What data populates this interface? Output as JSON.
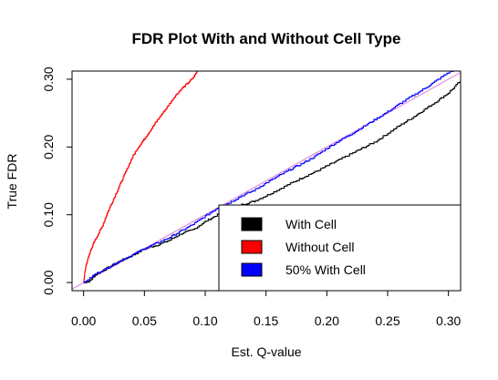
{
  "chart_data": {
    "type": "line",
    "title": "FDR Plot With and Without Cell Type",
    "xlabel": "Est. Q-value",
    "ylabel": "True FDR",
    "xlim": [
      -0.0095,
      0.31
    ],
    "ylim": [
      -0.012,
      0.312
    ],
    "xticks": [
      0.0,
      0.05,
      0.1,
      0.15,
      0.2,
      0.25,
      0.3
    ],
    "xtick_labels": [
      "0.00",
      "0.05",
      "0.10",
      "0.15",
      "0.20",
      "0.25",
      "0.30"
    ],
    "yticks": [
      0.0,
      0.1,
      0.2,
      0.3
    ],
    "ytick_labels": [
      "0.00",
      "0.10",
      "0.20",
      "0.30"
    ],
    "grid": false,
    "legend_position": "bottom-right",
    "reference_line": {
      "slope": 1,
      "intercept": 0,
      "color": "#e08ee0"
    },
    "series": [
      {
        "name": "With Cell",
        "color": "#000000",
        "x": [
          0.0,
          0.005,
          0.01,
          0.02,
          0.03,
          0.04,
          0.05,
          0.06,
          0.07,
          0.08,
          0.09,
          0.1,
          0.11,
          0.12,
          0.13,
          0.14,
          0.15,
          0.16,
          0.17,
          0.18,
          0.19,
          0.2,
          0.21,
          0.22,
          0.23,
          0.24,
          0.25,
          0.26,
          0.27,
          0.28,
          0.29,
          0.3,
          0.31
        ],
        "y": [
          0.0,
          0.002,
          0.012,
          0.022,
          0.032,
          0.04,
          0.05,
          0.055,
          0.062,
          0.072,
          0.078,
          0.09,
          0.1,
          0.105,
          0.115,
          0.12,
          0.128,
          0.137,
          0.146,
          0.155,
          0.163,
          0.172,
          0.181,
          0.19,
          0.199,
          0.208,
          0.22,
          0.232,
          0.243,
          0.255,
          0.267,
          0.28,
          0.298
        ]
      },
      {
        "name": "Without Cell",
        "color": "#ff0000",
        "x": [
          0.0,
          0.001,
          0.002,
          0.004,
          0.006,
          0.008,
          0.01,
          0.015,
          0.02,
          0.025,
          0.03,
          0.035,
          0.04,
          0.045,
          0.05,
          0.055,
          0.06,
          0.065,
          0.07,
          0.075,
          0.08,
          0.085,
          0.09,
          0.0935
        ],
        "y": [
          0.0,
          0.015,
          0.025,
          0.038,
          0.048,
          0.057,
          0.065,
          0.082,
          0.105,
          0.125,
          0.145,
          0.165,
          0.185,
          0.2,
          0.212,
          0.225,
          0.238,
          0.25,
          0.262,
          0.275,
          0.285,
          0.293,
          0.302,
          0.312
        ]
      },
      {
        "name": "50% With Cell",
        "color": "#0000ff",
        "x": [
          0.0,
          0.005,
          0.01,
          0.02,
          0.03,
          0.04,
          0.05,
          0.06,
          0.07,
          0.08,
          0.09,
          0.1,
          0.11,
          0.12,
          0.13,
          0.14,
          0.15,
          0.16,
          0.17,
          0.18,
          0.19,
          0.2,
          0.21,
          0.22,
          0.23,
          0.24,
          0.25,
          0.26,
          0.27,
          0.28,
          0.29,
          0.3,
          0.31
        ],
        "y": [
          0.0,
          0.006,
          0.013,
          0.022,
          0.032,
          0.041,
          0.05,
          0.058,
          0.066,
          0.076,
          0.086,
          0.098,
          0.11,
          0.118,
          0.128,
          0.136,
          0.147,
          0.157,
          0.167,
          0.176,
          0.186,
          0.198,
          0.209,
          0.219,
          0.23,
          0.241,
          0.252,
          0.264,
          0.275,
          0.286,
          0.298,
          0.31,
          0.318
        ]
      }
    ]
  }
}
